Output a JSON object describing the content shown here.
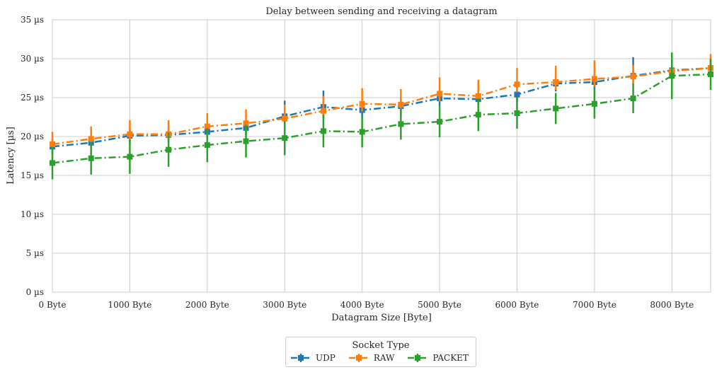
{
  "chart_data": {
    "type": "line",
    "title": "Delay between sending and receiving a datagram",
    "xlabel": "Datagram Size [Byte]",
    "ylabel": "Latency [µs]",
    "xlim": [
      0,
      8500
    ],
    "ylim": [
      0,
      35
    ],
    "x_ticks": [
      0,
      1000,
      2000,
      3000,
      4000,
      5000,
      6000,
      7000,
      8000
    ],
    "x_tick_labels": [
      "0 Byte",
      "1000 Byte",
      "2000 Byte",
      "3000 Byte",
      "4000 Byte",
      "5000 Byte",
      "6000 Byte",
      "7000 Byte",
      "8000 Byte"
    ],
    "y_ticks": [
      0,
      5,
      10,
      15,
      20,
      25,
      30,
      35
    ],
    "y_tick_labels": [
      "0 µs",
      "5 µs",
      "10 µs",
      "15 µs",
      "20 µs",
      "25 µs",
      "30 µs",
      "35 µs"
    ],
    "grid": true,
    "legend_title": "Socket Type",
    "legend_position": "bottom-center",
    "x": [
      0,
      500,
      1000,
      1500,
      2000,
      2500,
      3000,
      3500,
      4000,
      4500,
      5000,
      5500,
      6000,
      6500,
      7000,
      7500,
      8000,
      8500
    ],
    "series": [
      {
        "name": "UDP",
        "color": "#1f77b4",
        "values": [
          18.7,
          19.2,
          20.1,
          20.2,
          20.6,
          21.1,
          22.6,
          23.8,
          23.4,
          23.9,
          24.9,
          24.8,
          25.4,
          26.8,
          27.0,
          27.8,
          28.5,
          28.8
        ],
        "error_low": [
          17.7,
          18.2,
          19.2,
          19.3,
          19.7,
          20.2,
          21.6,
          22.7,
          22.4,
          22.9,
          23.9,
          23.8,
          24.4,
          25.8,
          26.0,
          26.8,
          27.5,
          27.8
        ],
        "error_high": [
          19.7,
          20.2,
          21.0,
          21.1,
          21.5,
          22.0,
          24.6,
          25.9,
          24.4,
          24.9,
          25.9,
          25.8,
          26.4,
          27.8,
          28.0,
          30.2,
          29.5,
          29.8
        ]
      },
      {
        "name": "RAW",
        "color": "#ff7f0e",
        "values": [
          19.0,
          19.7,
          20.3,
          20.3,
          21.3,
          21.7,
          22.3,
          23.3,
          24.2,
          24.1,
          25.5,
          25.2,
          26.7,
          27.0,
          27.4,
          27.7,
          28.4,
          28.8
        ],
        "error_low": [
          18.0,
          18.7,
          19.3,
          19.3,
          20.3,
          20.7,
          21.3,
          22.3,
          23.2,
          23.1,
          24.5,
          24.2,
          25.7,
          26.0,
          26.4,
          26.7,
          27.4,
          27.8
        ],
        "error_high": [
          20.6,
          21.3,
          22.1,
          22.1,
          23.0,
          23.5,
          24.1,
          25.2,
          26.2,
          26.1,
          27.6,
          27.3,
          28.8,
          29.1,
          29.8,
          29.2,
          29.8,
          30.6
        ]
      },
      {
        "name": "PACKET",
        "color": "#2ca02c",
        "values": [
          16.6,
          17.2,
          17.4,
          18.3,
          18.9,
          19.4,
          19.8,
          20.7,
          20.6,
          21.6,
          21.9,
          22.8,
          23.0,
          23.6,
          24.2,
          24.9,
          27.8,
          28.0
        ],
        "error_low": [
          14.5,
          15.1,
          15.2,
          16.1,
          16.7,
          17.3,
          17.6,
          18.6,
          18.6,
          19.6,
          19.9,
          20.7,
          21.0,
          21.6,
          22.3,
          23.0,
          24.8,
          26.0
        ],
        "error_high": [
          18.7,
          19.3,
          19.6,
          20.5,
          21.1,
          21.5,
          22.0,
          22.8,
          22.6,
          23.6,
          23.9,
          24.9,
          25.0,
          25.6,
          26.1,
          26.8,
          30.8,
          30.0
        ]
      }
    ]
  }
}
